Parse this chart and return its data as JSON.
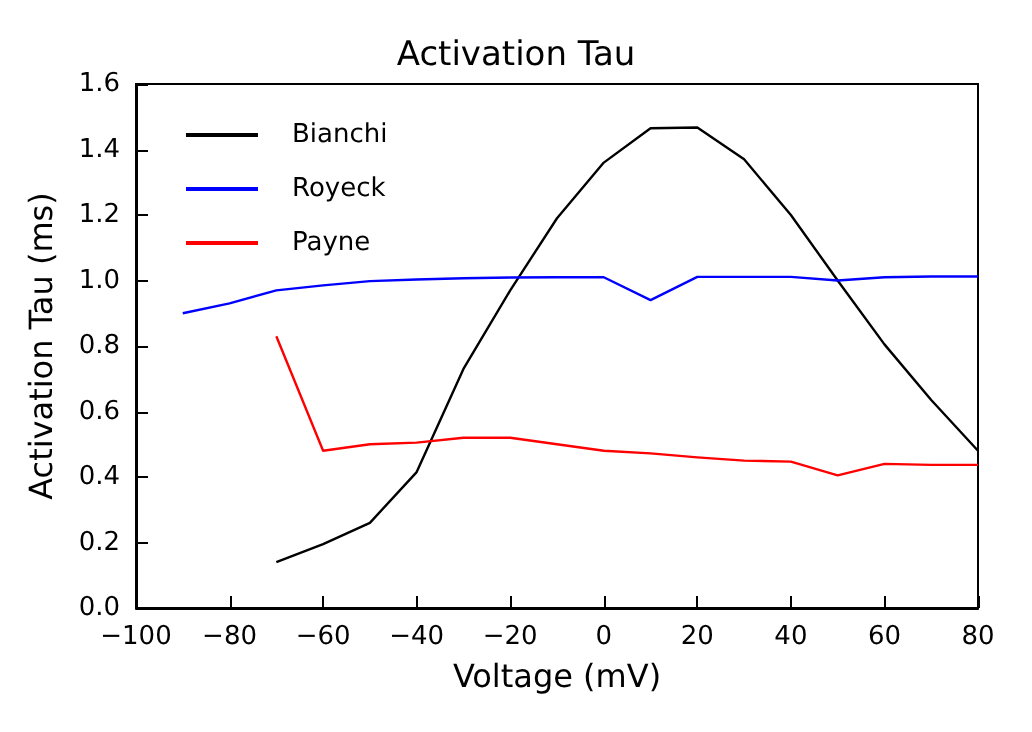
{
  "chart_data": {
    "type": "line",
    "title": "Activation Tau",
    "xlabel": "Voltage (mV)",
    "ylabel": "Activation Tau (ms)",
    "xlim": [
      -100,
      80
    ],
    "xticks": [
      {
        "value": -100,
        "label": "−100"
      },
      {
        "value": -80,
        "label": "−80"
      },
      {
        "value": -60,
        "label": "−60"
      },
      {
        "value": -40,
        "label": "−40"
      },
      {
        "value": -20,
        "label": "−20"
      },
      0,
      20,
      40,
      60,
      80
    ],
    "ylim": [
      0,
      1.6
    ],
    "yticks": [
      {
        "value": 0,
        "label": "0.0"
      },
      {
        "value": 0.2,
        "label": "0.2"
      },
      {
        "value": 0.4,
        "label": "0.4"
      },
      {
        "value": 0.6,
        "label": "0.6"
      },
      {
        "value": 0.8,
        "label": "0.8"
      },
      {
        "value": 1,
        "label": "1.0"
      },
      {
        "value": 1.2,
        "label": "1.2"
      },
      {
        "value": 1.4,
        "label": "1.4"
      },
      {
        "value": 1.6,
        "label": "1.6"
      }
    ],
    "grid": false,
    "legend": "top left",
    "marker": "none",
    "line_style": "solid",
    "series": [
      {
        "name": "Bianchi",
        "color": "#000000",
        "x": [
          -70,
          -60,
          -50,
          -40,
          -30,
          -20,
          -10,
          0,
          10,
          20,
          30,
          40,
          50,
          60,
          70,
          80
        ],
        "values": [
          0.14,
          0.195,
          0.26,
          0.415,
          0.73,
          0.97,
          1.19,
          1.36,
          1.465,
          1.467,
          1.37,
          1.2,
          1.0,
          0.805,
          0.635,
          0.48
        ]
      },
      {
        "name": "Royeck",
        "color": "#0000ff",
        "x": [
          -90,
          -80,
          -70,
          -60,
          -50,
          -40,
          -30,
          -20,
          -10,
          0,
          10,
          20,
          30,
          40,
          50,
          60,
          70,
          80
        ],
        "values": [
          0.9,
          0.93,
          0.97,
          0.985,
          0.998,
          1.003,
          1.007,
          1.009,
          1.01,
          1.01,
          0.94,
          1.011,
          1.011,
          1.011,
          1.0,
          1.01,
          1.012,
          1.012
        ]
      },
      {
        "name": "Payne",
        "color": "#ff0000",
        "x": [
          -70,
          -60,
          -50,
          -40,
          -30,
          -20,
          -10,
          0,
          10,
          20,
          30,
          40,
          50,
          60,
          70,
          80
        ],
        "values": [
          0.83,
          0.48,
          0.5,
          0.505,
          0.52,
          0.52,
          0.5,
          0.48,
          0.472,
          0.46,
          0.45,
          0.447,
          0.405,
          0.44,
          0.437,
          0.437
        ]
      }
    ]
  }
}
